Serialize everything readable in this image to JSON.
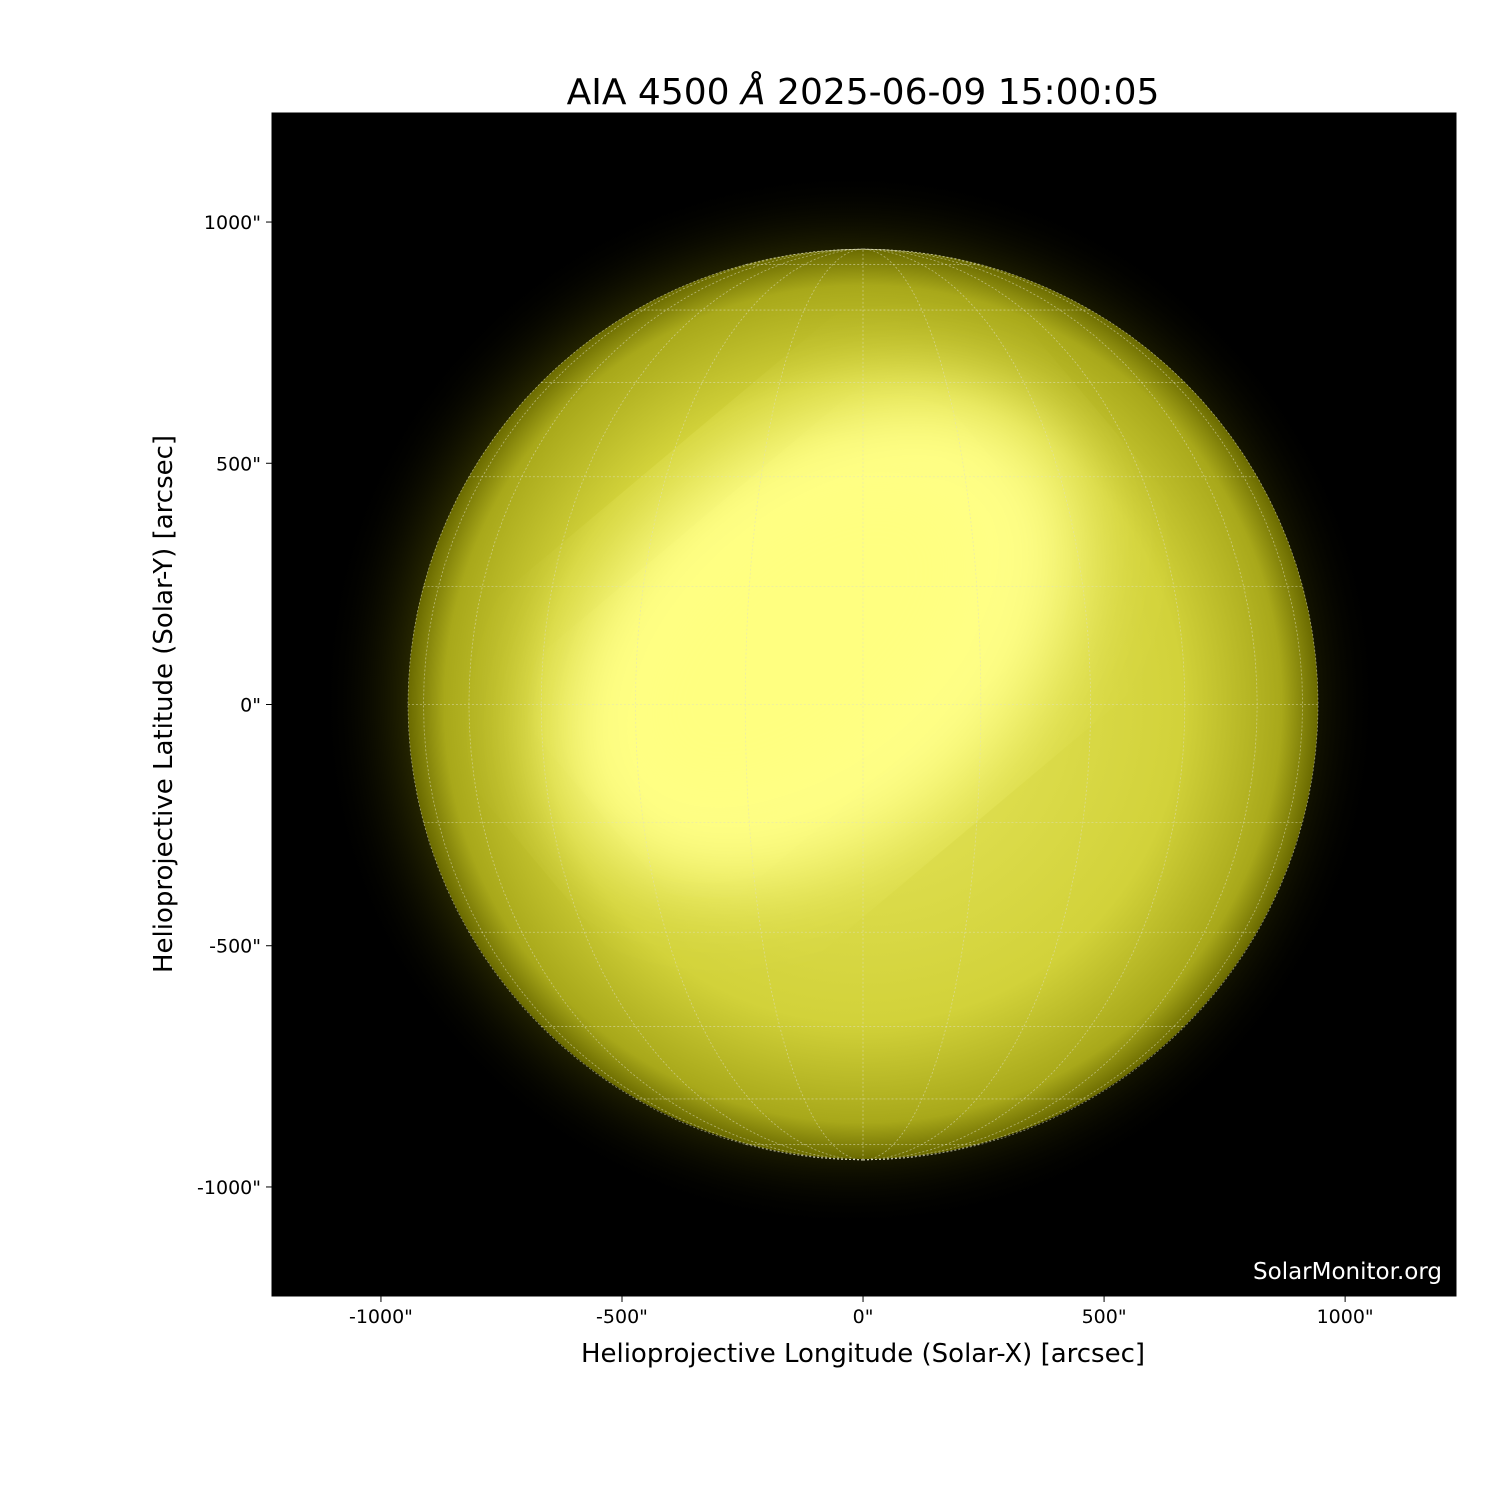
{
  "chart_data": {
    "type": "heatmap",
    "title_prefix": "AIA 4500 ",
    "title_unit": "Å",
    "title_suffix": " 2025-06-09 15:00:05",
    "xlabel": "Helioprojective Longitude (Solar-X) [arcsec]",
    "ylabel": "Helioprojective Latitude (Solar-Y) [arcsec]",
    "xlim": [
      -1226,
      1230
    ],
    "ylim": [
      -1226,
      1226
    ],
    "x_ticks": [
      -1000,
      -500,
      0,
      500,
      1000
    ],
    "x_tick_labels": [
      "-1000\"",
      "-500\"",
      "0\"",
      "500\"",
      "1000\""
    ],
    "y_ticks": [
      1000,
      500,
      0,
      -500,
      -1000
    ],
    "y_tick_labels": [
      "1000\"",
      "500\"",
      "0\"",
      "-500\"",
      "-1000\""
    ],
    "solar_radius_arcsec": 944,
    "grid_spacing_deg": 15,
    "colormap": "sdoaia4500",
    "colors": {
      "background": "#000000",
      "disk_bright": "#ffff80",
      "disk_limb": "#6e6e00",
      "grid": "#e0e0c0"
    },
    "watermark": "SolarMonitor.org"
  }
}
